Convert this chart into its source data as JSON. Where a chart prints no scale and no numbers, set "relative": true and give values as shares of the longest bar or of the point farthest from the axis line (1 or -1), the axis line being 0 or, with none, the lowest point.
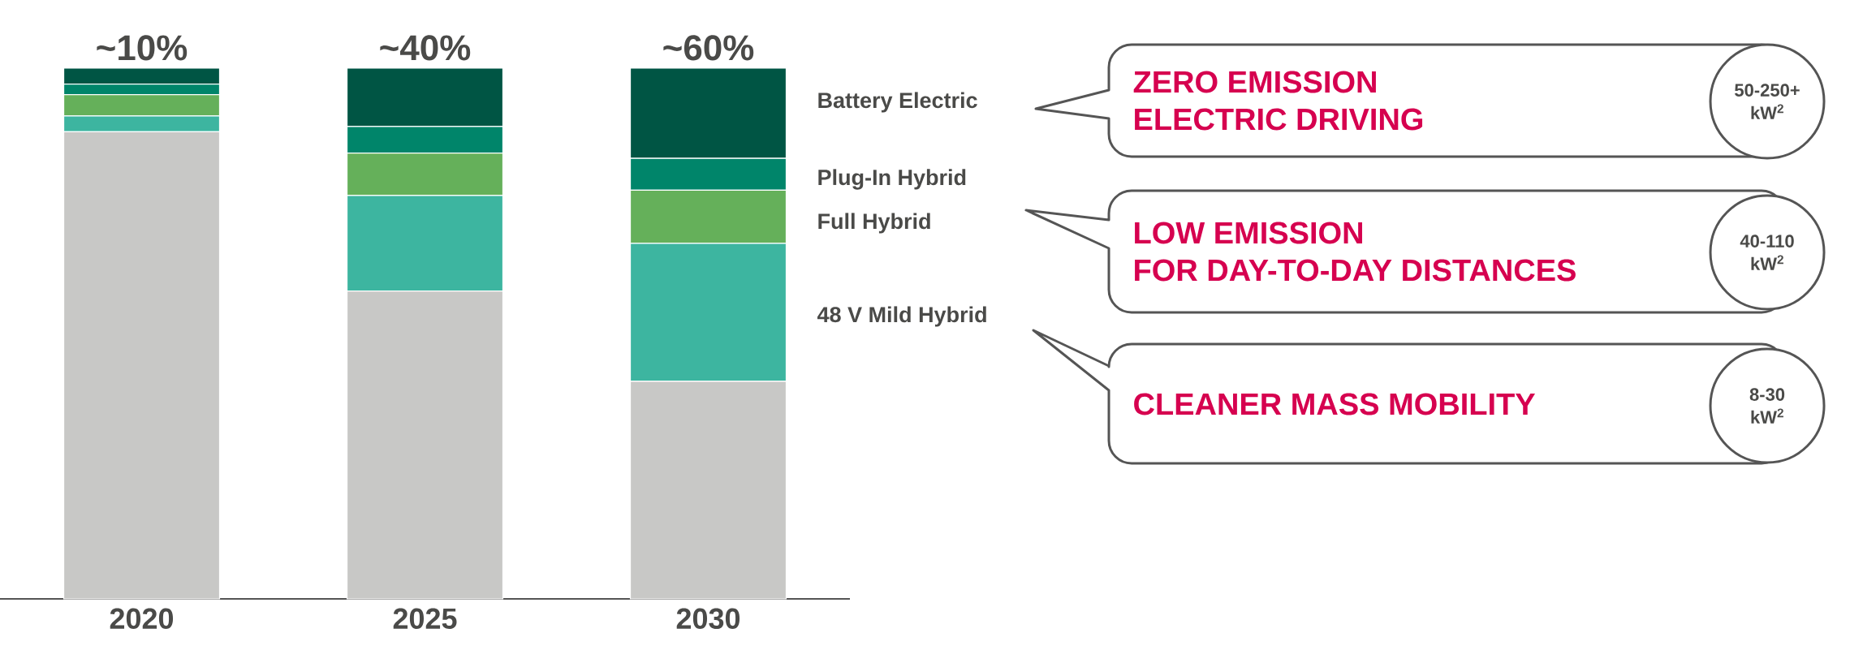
{
  "chart_data": {
    "type": "bar",
    "stacked": true,
    "relative": true,
    "categories": [
      "2020",
      "2025",
      "2030"
    ],
    "series": [
      {
        "color": "#c8c8c6",
        "values": [
          0.88,
          0.58,
          0.41
        ]
      },
      {
        "name": "48 V Mild Hybrid",
        "color": "#3db5a0",
        "values": [
          0.03,
          0.18,
          0.26
        ]
      },
      {
        "name": "Full Hybrid",
        "color": "#65b05a",
        "values": [
          0.04,
          0.08,
          0.1
        ]
      },
      {
        "name": "Plug-In Hybrid",
        "color": "#00856a",
        "values": [
          0.02,
          0.05,
          0.06
        ]
      },
      {
        "name": "Battery Electric",
        "color": "#005544",
        "values": [
          0.03,
          0.11,
          0.17
        ]
      }
    ],
    "annotations": [
      "ZERO EMISSION",
      "ELECTRIC DRIVING",
      "50-250+",
      "kW$^{2}$",
      "LOW EMISSION",
      "FOR DAY-TO-DAY DISTANCES",
      "40-110",
      "kW$^{2}$",
      "CLEANER MASS MOBILITY",
      "8-30",
      "kW$^{2}$",
      {
        "text": "~10%",
        "x": "2020",
        "y": 1
      },
      {
        "text": "~40%",
        "x": "2025",
        "y": 1
      },
      {
        "text": "~60%",
        "x": "2030",
        "y": 1
      }
    ]
  }
}
